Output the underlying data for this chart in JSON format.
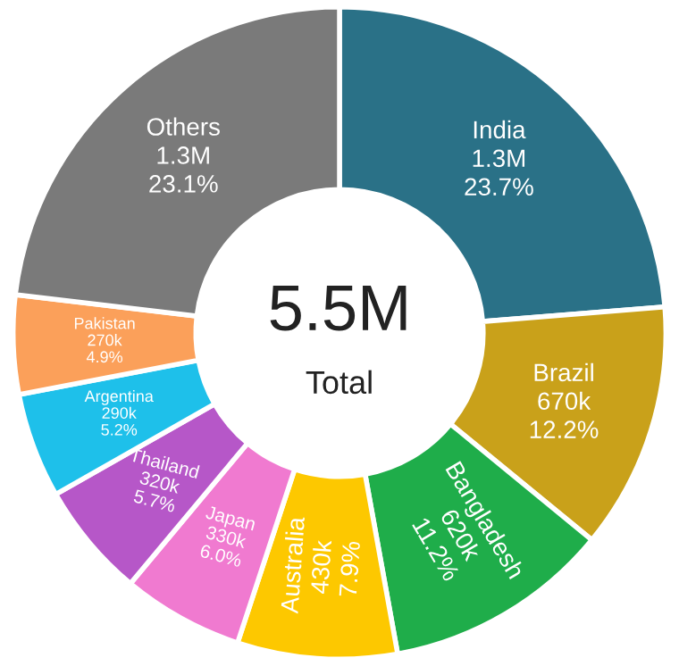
{
  "chart_data": {
    "type": "donut",
    "categories": [
      "India",
      "Brazil",
      "Bangladesh",
      "Australia",
      "Japan",
      "Thailand",
      "Argentina",
      "Pakistan",
      "Others"
    ],
    "values": [
      23.7,
      12.2,
      11.2,
      7.9,
      6.0,
      5.7,
      5.2,
      4.9,
      23.1
    ],
    "value_labels": [
      "1.3M\n23.7%",
      "670k\n12.2%",
      "620k\n11.2%",
      "430k\n7.9%",
      "330k\n6.0%",
      "320k\n5.7%",
      "290k\n5.2%",
      "270k\n4.9%",
      "1.3M\n23.1%"
    ],
    "colors": [
      "#2a7187",
      "#c9a11a",
      "#1fad4a",
      "#fdc800",
      "#f07ad0",
      "#b657c8",
      "#1ec0ea",
      "#fba05a",
      "#7a7a7a"
    ],
    "annotations": [
      "5.5M",
      "Total"
    ],
    "legend": false
  }
}
